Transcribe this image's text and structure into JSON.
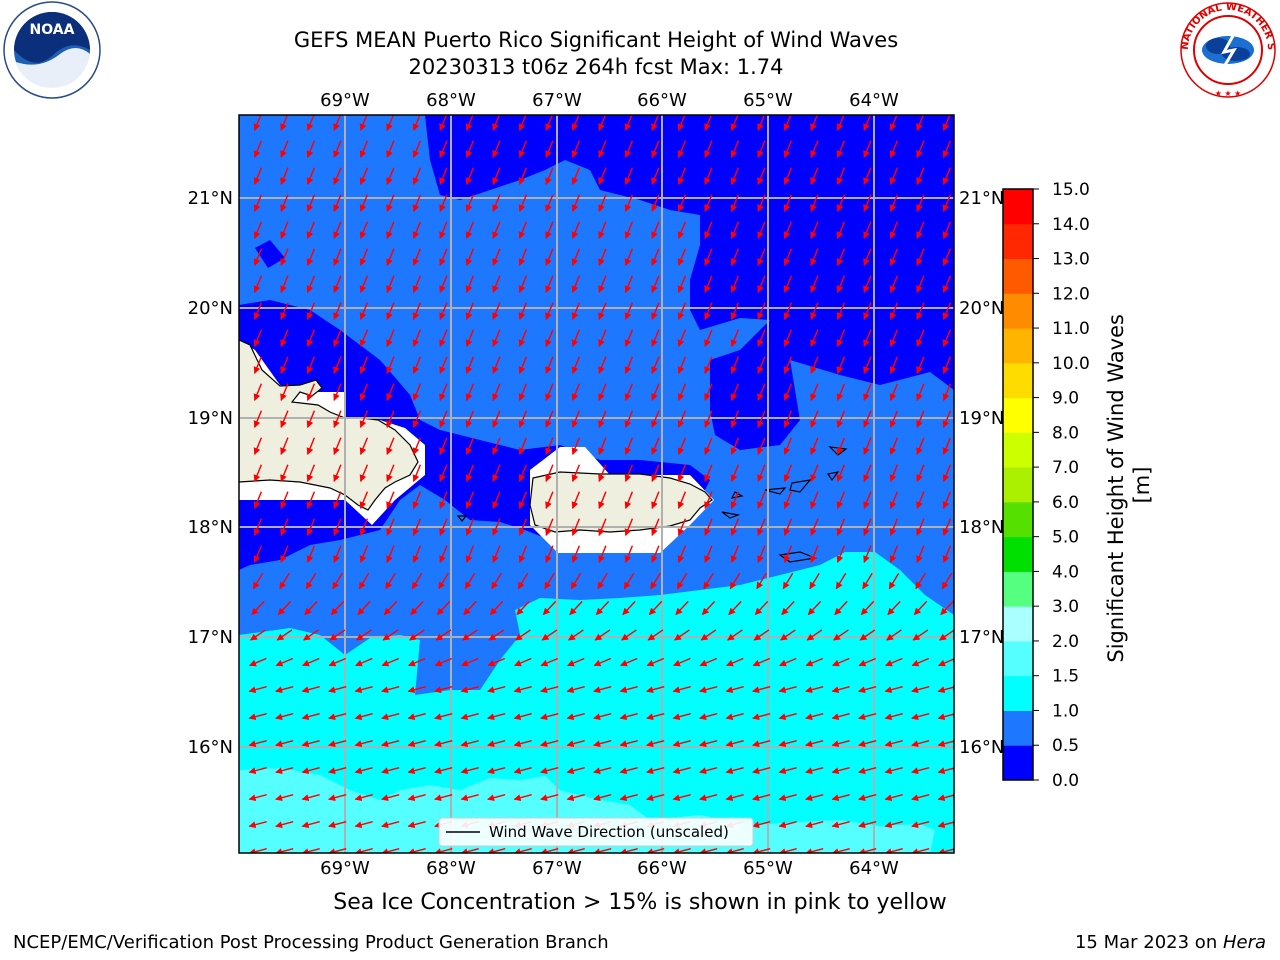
{
  "header": {
    "title_line1": "GEFS MEAN Puerto Rico Significant Height of Wind Waves",
    "title_line2": "20230313 t06z 264h fcst   Max: 1.74"
  },
  "logos": {
    "left": {
      "name": "noaa-logo",
      "text": "NOAA",
      "ring_text": "NATIONAL OCEANIC AND ATMOSPHERIC ADMINISTRATION · U.S. DEPARTMENT OF COMMERCE"
    },
    "right": {
      "name": "nws-logo",
      "ring_text": "NATIONAL WEATHER SERVICE"
    }
  },
  "map": {
    "lon_labels": [
      "69°W",
      "68°W",
      "67°W",
      "66°W",
      "65°W",
      "64°W"
    ],
    "lat_labels": [
      "21°N",
      "20°N",
      "19°N",
      "18°N",
      "17°N",
      "16°N"
    ],
    "legend_label": "Wind Wave Direction (unscaled)",
    "arrow_color": "#ff0000",
    "land_color": "#efefdf"
  },
  "colorbar": {
    "label": "Significant Height of Wind Waves [m]",
    "ticks": [
      "0.0",
      "0.5",
      "1.0",
      "1.5",
      "2.0",
      "3.0",
      "4.0",
      "5.0",
      "6.0",
      "7.0",
      "8.0",
      "9.0",
      "10.0",
      "11.0",
      "12.0",
      "13.0",
      "14.0",
      "15.0"
    ],
    "colors": [
      "#0000ff",
      "#1e78ff",
      "#00ffff",
      "#55ffff",
      "#aaffff",
      "#55ff80",
      "#00e000",
      "#55e000",
      "#aaf000",
      "#ccff00",
      "#ffff00",
      "#ffdc00",
      "#ffb400",
      "#ff8c00",
      "#ff5a00",
      "#ff2800",
      "#ff0000"
    ]
  },
  "caption": "Sea Ice Concentration > 15% is shown in pink to yellow",
  "footer": {
    "left": "NCEP/EMC/Verification Post Processing Product Generation Branch",
    "date": "15 Mar 2023 on ",
    "host": "Hera"
  }
}
